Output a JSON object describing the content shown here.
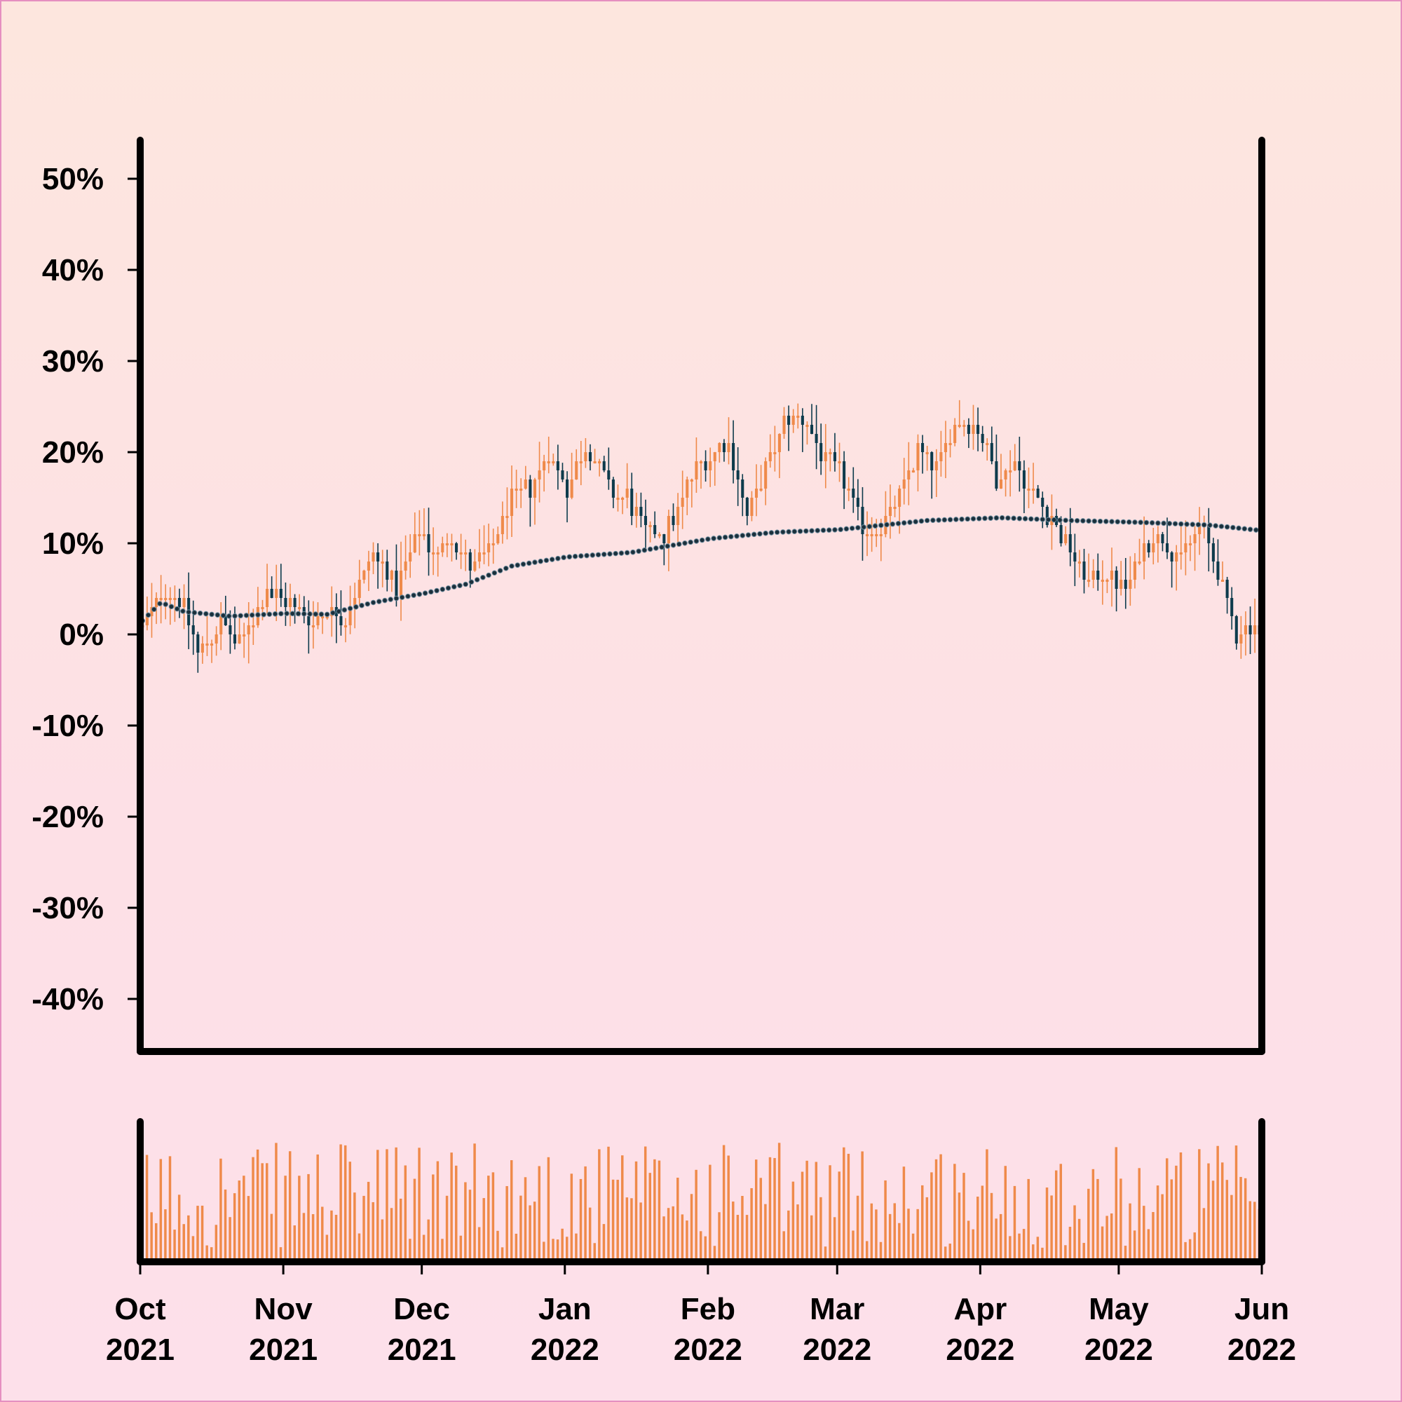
{
  "chart_data": {
    "type": "candlestick",
    "price_panel": {
      "ylim": [
        -45,
        54
      ],
      "yticks": [
        50,
        40,
        30,
        20,
        10,
        0,
        -10,
        -20,
        -30,
        -40
      ],
      "ytick_labels": [
        "50%",
        "40%",
        "30%",
        "20%",
        "10%",
        "0%",
        "-10%",
        "-20%",
        "-30%",
        "-40%"
      ]
    },
    "x_range": [
      "2021-10-01",
      "2022-06-01"
    ],
    "xticks": [
      {
        "date": "2021-10-01",
        "month": "Oct",
        "year": "2021"
      },
      {
        "date": "2021-11-01",
        "month": "Nov",
        "year": "2021"
      },
      {
        "date": "2021-12-01",
        "month": "Dec",
        "year": "2021"
      },
      {
        "date": "2022-01-01",
        "month": "Jan",
        "year": "2022"
      },
      {
        "date": "2022-02-01",
        "month": "Feb",
        "year": "2022"
      },
      {
        "date": "2022-03-01",
        "month": "Mar",
        "year": "2022"
      },
      {
        "date": "2022-04-01",
        "month": "Apr",
        "year": "2022"
      },
      {
        "date": "2022-05-01",
        "month": "May",
        "year": "2022"
      },
      {
        "date": "2022-06-01",
        "month": "Jun",
        "year": "2022"
      }
    ],
    "close_path": [
      [
        "2021-10-01",
        1
      ],
      [
        "2021-10-06",
        5
      ],
      [
        "2021-10-09",
        4
      ],
      [
        "2021-10-13",
        -2
      ],
      [
        "2021-10-18",
        1
      ],
      [
        "2021-10-22",
        -1
      ],
      [
        "2021-10-28",
        5
      ],
      [
        "2021-11-03",
        3
      ],
      [
        "2021-11-07",
        1
      ],
      [
        "2021-11-10",
        3
      ],
      [
        "2021-11-14",
        2
      ],
      [
        "2021-11-20",
        9
      ],
      [
        "2021-11-25",
        5
      ],
      [
        "2021-11-30",
        11
      ],
      [
        "2021-12-04",
        9
      ],
      [
        "2021-12-07",
        11
      ],
      [
        "2021-12-11",
        7
      ],
      [
        "2021-12-15",
        9
      ],
      [
        "2021-12-20",
        15
      ],
      [
        "2021-12-24",
        16
      ],
      [
        "2021-12-28",
        20
      ],
      [
        "2022-01-01",
        16
      ],
      [
        "2022-01-05",
        21
      ],
      [
        "2022-01-10",
        16
      ],
      [
        "2022-01-14",
        15
      ],
      [
        "2022-01-18",
        11
      ],
      [
        "2022-01-22",
        11
      ],
      [
        "2022-01-26",
        15
      ],
      [
        "2022-01-30",
        19
      ],
      [
        "2022-02-05",
        21
      ],
      [
        "2022-02-09",
        13
      ],
      [
        "2022-02-13",
        18
      ],
      [
        "2022-02-17",
        23
      ],
      [
        "2022-02-21",
        24
      ],
      [
        "2022-02-26",
        19
      ],
      [
        "2022-03-02",
        17
      ],
      [
        "2022-03-06",
        12
      ],
      [
        "2022-03-10",
        12
      ],
      [
        "2022-03-14",
        15
      ],
      [
        "2022-03-18",
        20
      ],
      [
        "2022-03-22",
        18
      ],
      [
        "2022-03-26",
        23
      ],
      [
        "2022-03-31",
        23
      ],
      [
        "2022-04-04",
        17
      ],
      [
        "2022-04-08",
        19
      ],
      [
        "2022-04-12",
        15
      ],
      [
        "2022-04-16",
        13
      ],
      [
        "2022-04-20",
        9
      ],
      [
        "2022-04-24",
        6
      ],
      [
        "2022-04-28",
        7
      ],
      [
        "2022-05-02",
        5
      ],
      [
        "2022-05-06",
        10
      ],
      [
        "2022-05-10",
        11
      ],
      [
        "2022-05-14",
        8
      ],
      [
        "2022-05-18",
        12
      ],
      [
        "2022-05-22",
        7
      ],
      [
        "2022-05-26",
        0
      ],
      [
        "2022-05-30",
        1
      ],
      [
        "2022-06-03",
        -3
      ],
      [
        "2022-06-08",
        -7
      ]
    ],
    "moving_average": [
      [
        "2021-10-01",
        1.5
      ],
      [
        "2021-10-05",
        3.5
      ],
      [
        "2021-10-10",
        2.5
      ],
      [
        "2021-10-20",
        2
      ],
      [
        "2021-11-01",
        2.3
      ],
      [
        "2021-11-10",
        2.2
      ],
      [
        "2021-11-20",
        3.5
      ],
      [
        "2021-12-01",
        4.5
      ],
      [
        "2021-12-10",
        5.5
      ],
      [
        "2021-12-20",
        7.5
      ],
      [
        "2022-01-01",
        8.5
      ],
      [
        "2022-01-15",
        9
      ],
      [
        "2022-02-01",
        10.5
      ],
      [
        "2022-02-15",
        11.2
      ],
      [
        "2022-03-01",
        11.5
      ],
      [
        "2022-03-20",
        12.5
      ],
      [
        "2022-04-05",
        12.8
      ],
      [
        "2022-04-20",
        12.5
      ],
      [
        "2022-05-05",
        12.3
      ],
      [
        "2022-05-20",
        12
      ],
      [
        "2022-06-08",
        11
      ]
    ],
    "volume_panel": {
      "unlabeled": true,
      "relative_max": 1.0
    }
  },
  "colors": {
    "up": "#ef8a4a",
    "down": "#0d3b4c",
    "volume": "#ef8a4a",
    "axis": "#000000",
    "ma": "#1b2f3b"
  },
  "icons": []
}
